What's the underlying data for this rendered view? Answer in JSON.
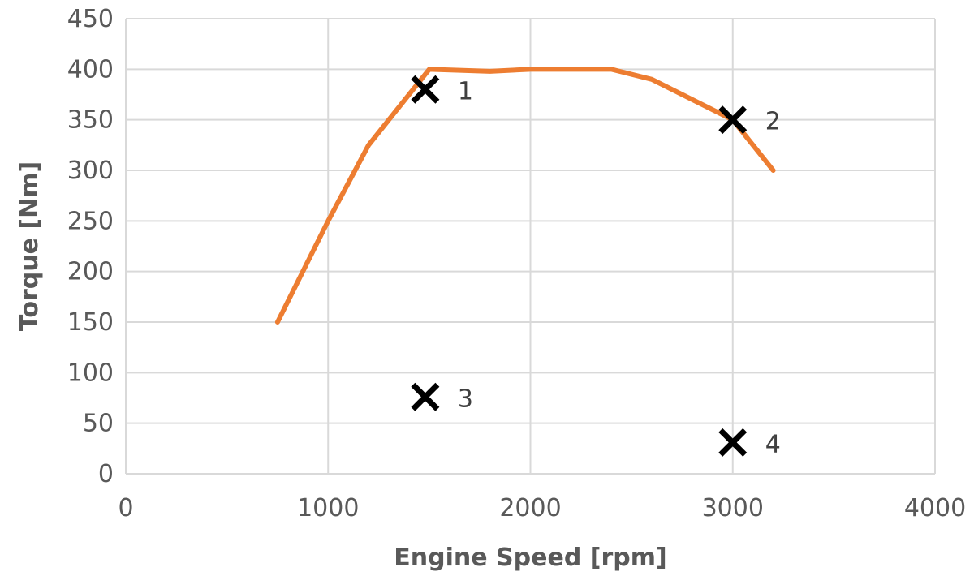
{
  "chart_data": {
    "type": "line",
    "xlabel": "Engine Speed [rpm]",
    "ylabel": "Torque [Nm]",
    "xlim": [
      0,
      4000
    ],
    "ylim": [
      0,
      450
    ],
    "x_ticks": [
      0,
      1000,
      2000,
      3000,
      4000
    ],
    "y_ticks": [
      0,
      50,
      100,
      150,
      200,
      250,
      300,
      350,
      400,
      450
    ],
    "grid": true,
    "legend": "none",
    "series": [
      {
        "color": "#ed7d31",
        "points": [
          {
            "x": 750,
            "y": 150
          },
          {
            "x": 1000,
            "y": 250
          },
          {
            "x": 1200,
            "y": 325
          },
          {
            "x": 1500,
            "y": 400
          },
          {
            "x": 1800,
            "y": 398
          },
          {
            "x": 2000,
            "y": 400
          },
          {
            "x": 2400,
            "y": 400
          },
          {
            "x": 2600,
            "y": 390
          },
          {
            "x": 3000,
            "y": 350
          },
          {
            "x": 3200,
            "y": 300
          }
        ]
      }
    ],
    "markers": [
      {
        "label": "1",
        "x": 1480,
        "y": 380
      },
      {
        "label": "2",
        "x": 3000,
        "y": 350
      },
      {
        "label": "3",
        "x": 1480,
        "y": 76
      },
      {
        "label": "4",
        "x": 3000,
        "y": 31
      }
    ]
  }
}
